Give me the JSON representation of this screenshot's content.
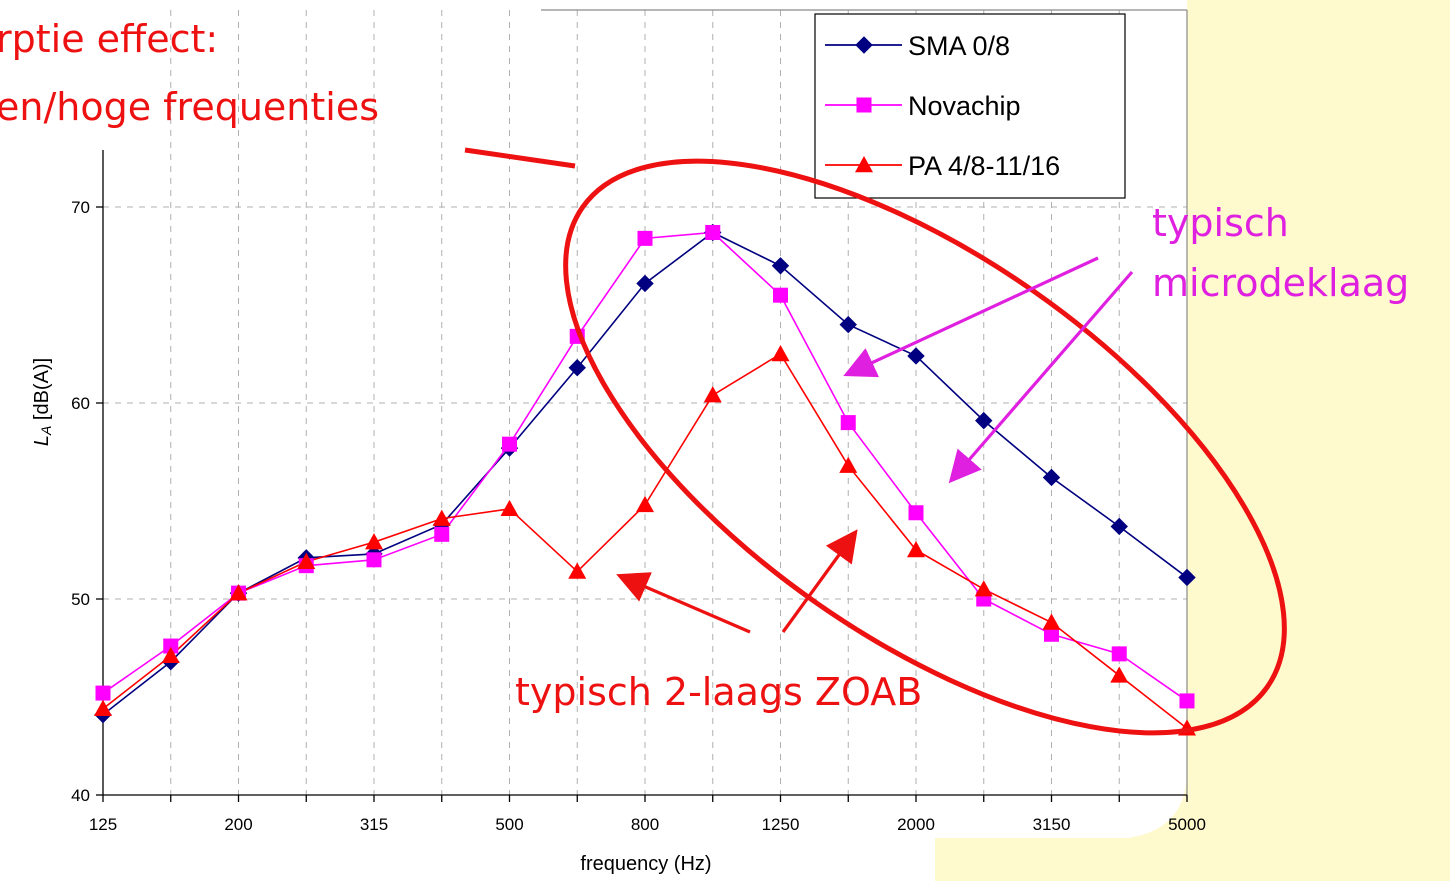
{
  "chart_data": {
    "type": "line",
    "xlabel": "frequency (Hz)",
    "ylabel_main": "L",
    "ylabel_sub": "A",
    "ylabel_rest": " [dB(A)]",
    "ylim": [
      40,
      70
    ],
    "yticks": [
      40,
      50,
      60,
      70
    ],
    "x": [
      "125",
      "160",
      "200",
      "250",
      "315",
      "400",
      "500",
      "630",
      "800",
      "1000",
      "1250",
      "1600",
      "2000",
      "2500",
      "3150",
      "4000",
      "5000"
    ],
    "x_tick_labels": [
      "125",
      "",
      "200",
      "",
      "315",
      "",
      "500",
      "",
      "800",
      "",
      "1250",
      "",
      "2000",
      "",
      "3150",
      "",
      "5000"
    ],
    "grid": true,
    "legend_position": "top-right",
    "series": [
      {
        "name": "SMA 0/8",
        "color": "#000080",
        "marker": "diamond",
        "values": [
          44.1,
          46.8,
          50.3,
          52.1,
          52.3,
          53.8,
          57.7,
          61.8,
          66.1,
          68.7,
          67.0,
          64.0,
          62.4,
          59.1,
          56.2,
          53.7,
          51.1
        ]
      },
      {
        "name": "Novachip",
        "color": "#ff00ff",
        "marker": "square",
        "values": [
          45.2,
          47.6,
          50.3,
          51.7,
          52.0,
          53.3,
          57.9,
          63.4,
          68.4,
          68.7,
          65.5,
          59.0,
          54.4,
          50.0,
          48.2,
          47.2,
          44.8
        ]
      },
      {
        "name": "PA 4/8-11/16",
        "color": "#ff0000",
        "marker": "triangle",
        "values": [
          44.4,
          47.1,
          50.3,
          51.9,
          52.9,
          54.1,
          54.6,
          51.4,
          54.8,
          60.4,
          62.5,
          56.8,
          52.5,
          50.5,
          48.8,
          46.1,
          43.4
        ]
      }
    ],
    "annotations": {
      "title_line1": "rptie effect:",
      "title_line2": "en/hoge frequenties",
      "magenta_line1": "typisch",
      "magenta_line2": "microdeklaag",
      "red_bottom": "typisch 2-laags ZOAB"
    }
  },
  "colors": {
    "background_right": "#fffacd",
    "annotation_red": "#ee1111",
    "annotation_magenta": "#e020e0"
  }
}
